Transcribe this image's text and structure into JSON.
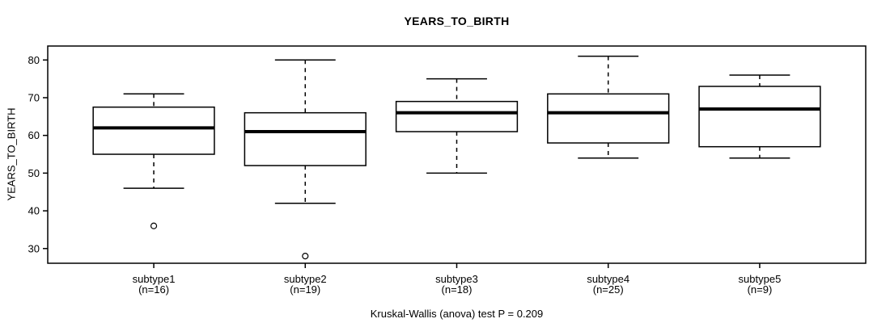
{
  "chart_data": {
    "type": "boxplot",
    "title": "YEARS_TO_BIRTH",
    "ylabel": "YEARS_TO_BIRTH",
    "xlabel": "",
    "caption": "Kruskal-Wallis (anova) test P = 0.209",
    "p_value": 0.209,
    "yticks": [
      30,
      40,
      50,
      60,
      70,
      80
    ],
    "ylim": [
      26.1,
      83.7
    ],
    "grid": false,
    "legend": "none",
    "line_color": "#000000",
    "box_fill": "#ffffff",
    "groups": [
      {
        "label": "subtype1",
        "n_label": "(n=16)",
        "n": 16,
        "whisker_low": 46,
        "q1": 55,
        "median": 62,
        "q3": 67.5,
        "whisker_high": 71,
        "outliers": [
          36
        ]
      },
      {
        "label": "subtype2",
        "n_label": "(n=19)",
        "n": 19,
        "whisker_low": 42,
        "q1": 52,
        "median": 61,
        "q3": 66,
        "whisker_high": 80,
        "outliers": [
          28
        ]
      },
      {
        "label": "subtype3",
        "n_label": "(n=18)",
        "n": 18,
        "whisker_low": 50,
        "q1": 61,
        "median": 66,
        "q3": 69,
        "whisker_high": 75,
        "outliers": []
      },
      {
        "label": "subtype4",
        "n_label": "(n=25)",
        "n": 25,
        "whisker_low": 54,
        "q1": 58,
        "median": 66,
        "q3": 71,
        "whisker_high": 81,
        "outliers": []
      },
      {
        "label": "subtype5",
        "n_label": "(n=9)",
        "n": 9,
        "whisker_low": 54,
        "q1": 57,
        "median": 67,
        "q3": 73,
        "whisker_high": 76,
        "outliers": []
      }
    ]
  }
}
